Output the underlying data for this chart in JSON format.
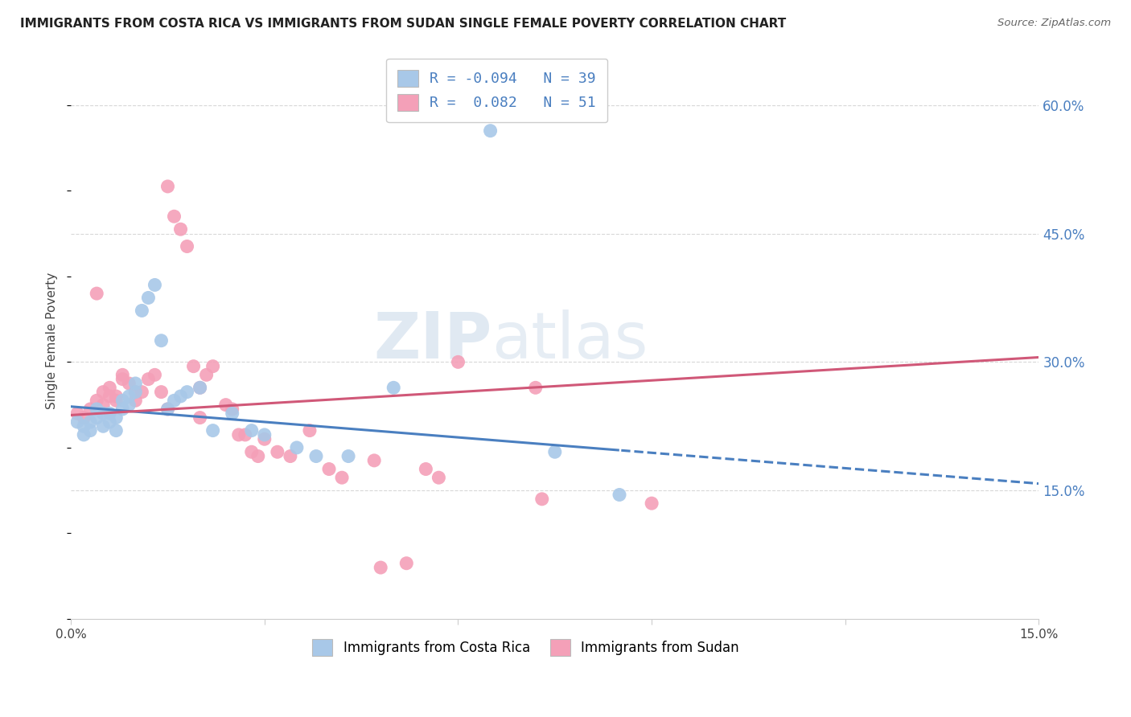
{
  "title": "IMMIGRANTS FROM COSTA RICA VS IMMIGRANTS FROM SUDAN SINGLE FEMALE POVERTY CORRELATION CHART",
  "source": "Source: ZipAtlas.com",
  "ylabel": "Single Female Poverty",
  "yticks": [
    "60.0%",
    "45.0%",
    "30.0%",
    "15.0%"
  ],
  "ytick_vals": [
    0.6,
    0.45,
    0.3,
    0.15
  ],
  "xlim": [
    0.0,
    0.15
  ],
  "ylim": [
    0.0,
    0.65
  ],
  "legend_R_blue": "-0.094",
  "legend_N_blue": "39",
  "legend_R_pink": "0.082",
  "legend_N_pink": "51",
  "legend_label_blue": "Immigrants from Costa Rica",
  "legend_label_pink": "Immigrants from Sudan",
  "color_blue": "#a8c8e8",
  "color_pink": "#f4a0b8",
  "color_blue_line": "#4a7fc0",
  "color_pink_line": "#d05878",
  "color_blue_text": "#4a7fc0",
  "blue_scatter_x": [
    0.001,
    0.002,
    0.002,
    0.003,
    0.003,
    0.004,
    0.004,
    0.005,
    0.005,
    0.006,
    0.006,
    0.007,
    0.007,
    0.008,
    0.008,
    0.009,
    0.009,
    0.01,
    0.01,
    0.011,
    0.012,
    0.013,
    0.014,
    0.015,
    0.016,
    0.017,
    0.018,
    0.02,
    0.022,
    0.025,
    0.028,
    0.03,
    0.035,
    0.038,
    0.043,
    0.05,
    0.065,
    0.075,
    0.085
  ],
  "blue_scatter_y": [
    0.23,
    0.225,
    0.215,
    0.22,
    0.23,
    0.235,
    0.245,
    0.24,
    0.225,
    0.23,
    0.24,
    0.235,
    0.22,
    0.255,
    0.245,
    0.25,
    0.26,
    0.265,
    0.275,
    0.36,
    0.375,
    0.39,
    0.325,
    0.245,
    0.255,
    0.26,
    0.265,
    0.27,
    0.22,
    0.24,
    0.22,
    0.215,
    0.2,
    0.19,
    0.19,
    0.27,
    0.57,
    0.195,
    0.145
  ],
  "pink_scatter_x": [
    0.001,
    0.002,
    0.003,
    0.004,
    0.004,
    0.005,
    0.005,
    0.006,
    0.006,
    0.007,
    0.007,
    0.008,
    0.008,
    0.009,
    0.01,
    0.01,
    0.011,
    0.012,
    0.013,
    0.014,
    0.015,
    0.015,
    0.016,
    0.017,
    0.018,
    0.019,
    0.02,
    0.02,
    0.021,
    0.022,
    0.024,
    0.025,
    0.026,
    0.027,
    0.028,
    0.029,
    0.03,
    0.032,
    0.034,
    0.037,
    0.04,
    0.042,
    0.047,
    0.048,
    0.052,
    0.055,
    0.057,
    0.06,
    0.072,
    0.073,
    0.09
  ],
  "pink_scatter_y": [
    0.24,
    0.235,
    0.245,
    0.255,
    0.38,
    0.25,
    0.265,
    0.26,
    0.27,
    0.255,
    0.26,
    0.28,
    0.285,
    0.275,
    0.265,
    0.255,
    0.265,
    0.28,
    0.285,
    0.265,
    0.245,
    0.505,
    0.47,
    0.455,
    0.435,
    0.295,
    0.235,
    0.27,
    0.285,
    0.295,
    0.25,
    0.245,
    0.215,
    0.215,
    0.195,
    0.19,
    0.21,
    0.195,
    0.19,
    0.22,
    0.175,
    0.165,
    0.185,
    0.06,
    0.065,
    0.175,
    0.165,
    0.3,
    0.27,
    0.14,
    0.135
  ],
  "watermark_zip": "ZIP",
  "watermark_atlas": "atlas",
  "background_color": "#ffffff",
  "grid_color": "#d8d8d8",
  "spine_color": "#cccccc"
}
